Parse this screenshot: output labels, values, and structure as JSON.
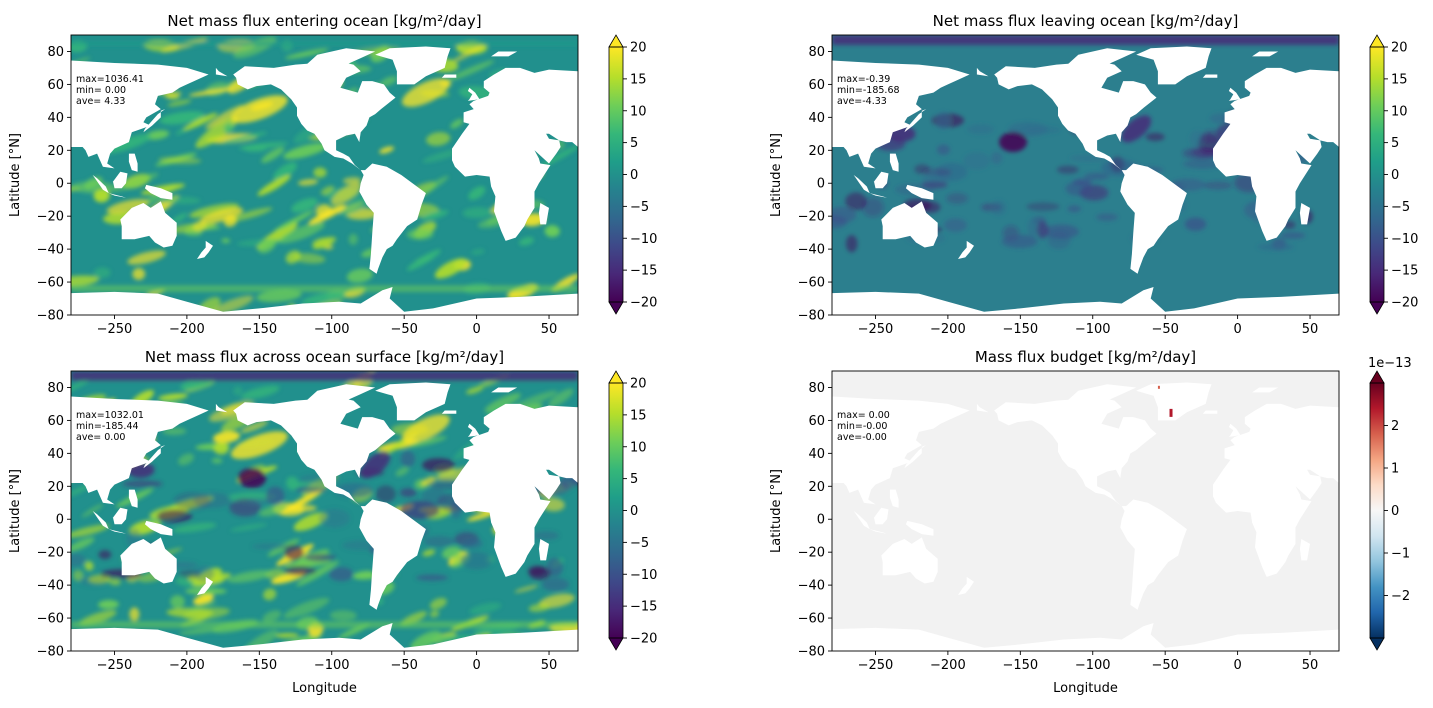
{
  "chart_data": [
    {
      "type": "heatmap",
      "title": "Net mass flux entering ocean [kg/m²/day]",
      "xlabel": "",
      "ylabel": "Latitude [°N]",
      "xlim": [
        -280,
        70
      ],
      "ylim": [
        -80,
        90
      ],
      "xticks": [
        -250,
        -200,
        -150,
        -100,
        -50,
        0,
        50
      ],
      "yticks": [
        -80,
        -60,
        -40,
        -20,
        0,
        20,
        40,
        60,
        80
      ],
      "stats": [
        "max=1036.41",
        "min= 0.00",
        "ave= 4.33"
      ],
      "colorbar": {
        "cmap": "viridis",
        "range": [
          -20,
          20
        ],
        "extend": "both",
        "ticks": [
          20,
          15,
          10,
          5,
          0,
          -5,
          -10,
          -15,
          -20
        ],
        "offset": ""
      },
      "field": "entering"
    },
    {
      "type": "heatmap",
      "title": "Net mass flux leaving ocean [kg/m²/day]",
      "xlabel": "",
      "ylabel": "Latitude [°N]",
      "xlim": [
        -280,
        70
      ],
      "ylim": [
        -80,
        90
      ],
      "xticks": [
        -250,
        -200,
        -150,
        -100,
        -50,
        0,
        50
      ],
      "yticks": [
        -80,
        -60,
        -40,
        -20,
        0,
        20,
        40,
        60,
        80
      ],
      "stats": [
        "max=-0.39",
        "min=-185.68",
        "ave=-4.33"
      ],
      "colorbar": {
        "cmap": "viridis",
        "range": [
          -20,
          20
        ],
        "extend": "both",
        "ticks": [
          20,
          15,
          10,
          5,
          0,
          -5,
          -10,
          -15,
          -20
        ],
        "offset": ""
      },
      "field": "leaving"
    },
    {
      "type": "heatmap",
      "title": "Net mass flux across ocean surface [kg/m²/day]",
      "xlabel": "Longitude",
      "ylabel": "Latitude [°N]",
      "xlim": [
        -280,
        70
      ],
      "ylim": [
        -80,
        90
      ],
      "xticks": [
        -250,
        -200,
        -150,
        -100,
        -50,
        0,
        50
      ],
      "yticks": [
        -80,
        -60,
        -40,
        -20,
        0,
        20,
        40,
        60,
        80
      ],
      "stats": [
        "max=1032.01",
        "min=-185.44",
        "ave= 0.00"
      ],
      "colorbar": {
        "cmap": "viridis",
        "range": [
          -20,
          20
        ],
        "extend": "both",
        "ticks": [
          20,
          15,
          10,
          5,
          0,
          -5,
          -10,
          -15,
          -20
        ],
        "offset": ""
      },
      "field": "net"
    },
    {
      "type": "heatmap",
      "title": "Mass flux budget [kg/m²/day]",
      "xlabel": "Longitude",
      "ylabel": "Latitude [°N]",
      "xlim": [
        -280,
        70
      ],
      "ylim": [
        -80,
        90
      ],
      "xticks": [
        -250,
        -200,
        -150,
        -100,
        -50,
        0,
        50
      ],
      "yticks": [
        -80,
        -60,
        -40,
        -20,
        0,
        20,
        40,
        60,
        80
      ],
      "stats": [
        "max= 0.00",
        "min=-0.00",
        "ave=-0.00"
      ],
      "colorbar": {
        "cmap": "RdBu_r",
        "range": [
          -3,
          3
        ],
        "extend": "both",
        "ticks": [
          2,
          1,
          0,
          -1,
          -2
        ],
        "tick_labels": [
          "2",
          "1",
          "0",
          "−1",
          "−2"
        ],
        "offset": "1e−13"
      },
      "field": "budget"
    }
  ],
  "colors": {
    "viridis": [
      "#440154",
      "#482878",
      "#3e4989",
      "#31688e",
      "#26828e",
      "#1f9e89",
      "#35b779",
      "#6ece58",
      "#b5de2b",
      "#fde725"
    ],
    "rdbu_r": [
      "#053061",
      "#2166ac",
      "#4393c3",
      "#92c5de",
      "#d1e5f0",
      "#f7f7f7",
      "#fddbc7",
      "#f4a582",
      "#d6604d",
      "#b2182b",
      "#67001f"
    ],
    "ocean_mid": "#21908d",
    "ocean_leaving": "#2c7f8e",
    "ocean_budget": "#f2f2f2",
    "land": "#ffffff"
  }
}
